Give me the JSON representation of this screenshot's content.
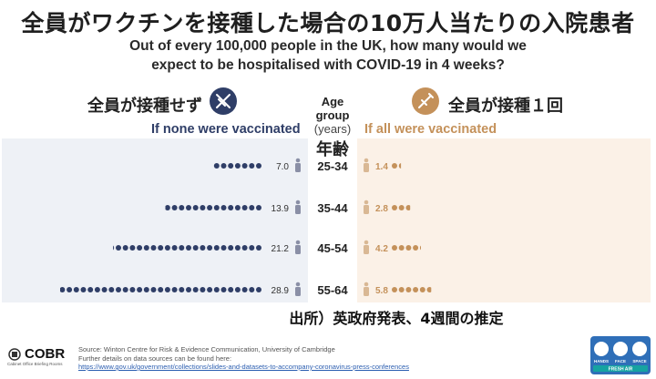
{
  "title": "全員がワクチンを接種した場合の10万人当たりの入院患者",
  "subtitle_lines": [
    "Out of every 100,000 people in the UK, how many would we",
    "expect to be hospitalised with COVID-19 in 4 weeks?"
  ],
  "left_panel": {
    "title_jp": "全員が接種せず",
    "title_en": "If none were vaccinated"
  },
  "right_panel": {
    "title_jp": "全員が接種１回",
    "title_en": "If all were vaccinated"
  },
  "age_header": {
    "line1": "Age",
    "line2": "group",
    "line3": "(years)",
    "jp": "年齢"
  },
  "source_note_jp": "出所）英政府発表、4週間の推定",
  "source": {
    "line1": "Source: Winton Centre for Risk & Evidence Communication, University of Cambridge",
    "line2": "Further details on data sources can be found here:",
    "link": "https://www.gov.uk/government/collections/slides-and-datasets-to-accompany-coronavirus-press-conferences"
  },
  "logo": {
    "name": "COBR",
    "subtext": "Cabinet Office Briefing Rooms"
  },
  "campaign_badge": {
    "items": [
      "HANDS",
      "FACE",
      "SPACE"
    ],
    "footer": "FRESH AIR"
  },
  "colors": {
    "unvaccinated": "#2f3e67",
    "vaccinated": "#c4915a"
  },
  "icons": {
    "left": "syringe-crossed-icon",
    "right": "syringe-icon",
    "person": "person-icon"
  },
  "chart_data": {
    "type": "bar",
    "categories": [
      "25-34",
      "35-44",
      "45-54",
      "55-64"
    ],
    "series": [
      {
        "name": "If none were vaccinated",
        "values": [
          7.0,
          13.9,
          21.2,
          28.9
        ]
      },
      {
        "name": "If all were vaccinated",
        "values": [
          1.4,
          2.8,
          4.2,
          5.8
        ]
      }
    ],
    "value_labels": {
      "unvaccinated": [
        "7.0",
        "13.9",
        "21.2",
        "28.9"
      ],
      "vaccinated": [
        "1.4",
        "2.8",
        "4.2",
        "5.8"
      ]
    }
  }
}
